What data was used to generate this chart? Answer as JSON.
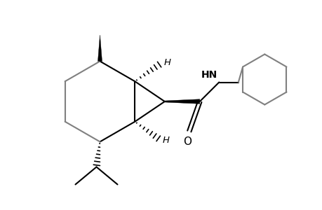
{
  "bg_color": "#ffffff",
  "line_color": "#000000",
  "gray_color": "#808080",
  "line_width": 1.5,
  "figsize": [
    4.6,
    3.0
  ],
  "dpi": 100,
  "xlim": [
    0,
    9.2
  ],
  "ylim": [
    0,
    6.0
  ]
}
